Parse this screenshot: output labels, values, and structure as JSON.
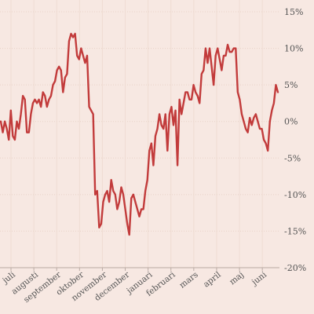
{
  "chart_data": {
    "type": "line",
    "ylim": [
      -20,
      15
    ],
    "y_ticks": [
      15,
      10,
      5,
      0,
      -5,
      -10,
      -15,
      -20
    ],
    "y_tick_labels": [
      "15%",
      "10%",
      "5%",
      "0%",
      "-5%",
      "-10%",
      "-15%",
      "-20%"
    ],
    "x_tick_labels": [
      "juli",
      "augusti",
      "september",
      "oktober",
      "november",
      "december",
      "januari",
      "februari",
      "mars",
      "april",
      "maj",
      "juni"
    ],
    "grid": true,
    "series_color": "#c23b3b",
    "series": [
      {
        "values": [
          0,
          -1.5,
          0,
          -1,
          -2.5,
          1.5,
          -2,
          -2.5,
          0,
          -1,
          1,
          3.5,
          3,
          -1.5,
          -1.5,
          1,
          2.5,
          3,
          2.5,
          3,
          2,
          4,
          3.5,
          2,
          3,
          3.5,
          5,
          5.5,
          7,
          7.5,
          7,
          4,
          6,
          6.5,
          11,
          12,
          11.5,
          12,
          9,
          8.5,
          10,
          9,
          8,
          9,
          2,
          1.5,
          1,
          -10,
          -9.5,
          -14.5,
          -14,
          -11,
          -10,
          -9.5,
          -11,
          -8,
          -9.5,
          -10,
          -12,
          -11,
          -9,
          -10,
          -12,
          -14,
          -15.5,
          -10.5,
          -10,
          -11,
          -12,
          -13,
          -12,
          -12,
          -9.5,
          -8,
          -4,
          -3,
          -6,
          -2,
          -1,
          1,
          -0.5,
          -1,
          1,
          -4,
          1,
          2,
          -0.5,
          1.5,
          -6,
          3,
          1,
          2.5,
          4,
          4,
          3,
          3,
          5,
          4,
          3.5,
          2.5,
          6.5,
          7,
          10,
          8,
          10,
          7.5,
          5,
          9,
          10,
          8.5,
          7,
          9,
          9,
          10.5,
          9.5,
          9.5,
          10,
          10,
          4,
          3,
          1,
          0,
          -1,
          -1.5,
          0.5,
          -0.5,
          0.5,
          1,
          0,
          -1,
          -1,
          -2.5,
          -3,
          -4,
          0,
          1.5,
          2.5,
          5,
          4
        ]
      }
    ]
  }
}
